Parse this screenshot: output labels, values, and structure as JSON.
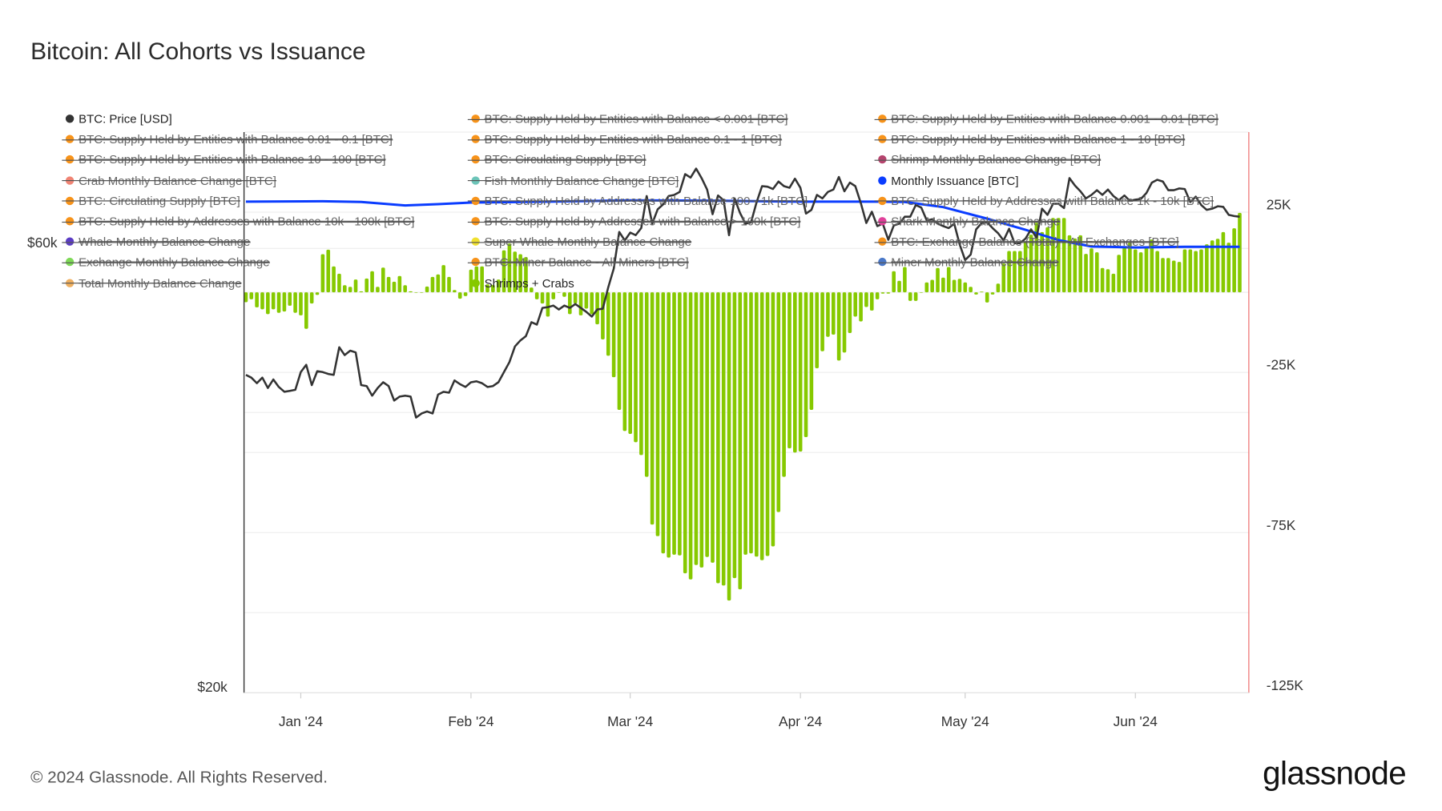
{
  "title": "Bitcoin: All Cohorts vs Issuance",
  "footer": "© 2024 Glassnode. All Rights Reserved.",
  "logo_text": "glassnode",
  "colors": {
    "price": "#333333",
    "issuance": "#0a3cff",
    "bars": "#86c900",
    "right_edge": "#f08080",
    "grid": "#eeeeee"
  },
  "legend": [
    {
      "label": "BTC: Price [USD]",
      "color": "#333333",
      "active": true
    },
    {
      "label": "BTC: Supply Held by Entities with Balance < 0.001 [BTC]",
      "color": "#f7931a",
      "active": false
    },
    {
      "label": "BTC: Supply Held by Entities with Balance 0.001 - 0.01 [BTC]",
      "color": "#f7931a",
      "active": false
    },
    {
      "label": "BTC: Supply Held by Entities with Balance 0.01 - 0.1 [BTC]",
      "color": "#f7931a",
      "active": false
    },
    {
      "label": "BTC: Supply Held by Entities with Balance 0.1 - 1 [BTC]",
      "color": "#f7931a",
      "active": false
    },
    {
      "label": "BTC: Supply Held by Entities with Balance 1 - 10 [BTC]",
      "color": "#f7931a",
      "active": false
    },
    {
      "label": "BTC: Supply Held by Entities with Balance 10 - 100 [BTC]",
      "color": "#f7931a",
      "active": false
    },
    {
      "label": "BTC: Circulating Supply [BTC]",
      "color": "#f7931a",
      "active": false
    },
    {
      "label": "Shrimp Monthly Balance Change [BTC]",
      "color": "#b5446e",
      "active": false
    },
    {
      "label": "Crab Monthly Balance Change [BTC]",
      "color": "#f08474",
      "active": false
    },
    {
      "label": "Fish Monthly Balance Change [BTC]",
      "color": "#6cc4b8",
      "active": false
    },
    {
      "label": "Monthly Issuance [BTC]",
      "color": "#0a3cff",
      "active": true
    },
    {
      "label": "BTC: Circulating Supply [BTC]",
      "color": "#f7931a",
      "active": false
    },
    {
      "label": "BTC: Supply Held by Addresses with Balance 100 - 1k [BTC]",
      "color": "#f7931a",
      "active": false
    },
    {
      "label": "BTC: Supply Held by Addresses with Balance 1k - 10k [BTC]",
      "color": "#f7931a",
      "active": false
    },
    {
      "label": "BTC: Supply Held by Addresses with Balance 10k - 100k [BTC]",
      "color": "#f7931a",
      "active": false
    },
    {
      "label": "BTC: Supply Held by Addresses with Balance > 100k [BTC]",
      "color": "#f7931a",
      "active": false
    },
    {
      "label": "Shark Monthly Balance Change",
      "color": "#e0409a",
      "active": false
    },
    {
      "label": "Whale Monthly Balance Change",
      "color": "#5b3cc4",
      "active": false
    },
    {
      "label": "Super Whale Monthly Balance Change",
      "color": "#f0e030",
      "active": false
    },
    {
      "label": "BTC: Exchange Balance (Total) - All Exchanges [BTC]",
      "color": "#f7931a",
      "active": false
    },
    {
      "label": "Exchange Monthly Balance Change",
      "color": "#7ed957",
      "active": false
    },
    {
      "label": "BTC: Miner Balance - All Miners [BTC]",
      "color": "#f7931a",
      "active": false
    },
    {
      "label": "Miner Monthly Balance Change",
      "color": "#4a78c8",
      "active": false
    },
    {
      "label": "Total Monthly Balance Change",
      "color": "#f0b060",
      "active": false
    },
    {
      "label": "Shrimps + Crabs",
      "color": "#86c900",
      "active": true
    }
  ],
  "chart_data": {
    "type": "bar+line",
    "title": "Bitcoin: All Cohorts vs Issuance",
    "x_tick_labels": [
      "Jan '24",
      "Feb '24",
      "Mar '24",
      "Apr '24",
      "May '24",
      "Jun '24"
    ],
    "x_tick_dates": [
      "2024-01-01",
      "2024-02-01",
      "2024-03-01",
      "2024-04-01",
      "2024-05-01",
      "2024-06-01"
    ],
    "left_axis": {
      "scale": "log",
      "range": [
        20000,
        80000
      ],
      "tick_labels": [
        "$60k",
        "$20k"
      ],
      "tick_values": [
        60000,
        20000
      ]
    },
    "right_axis": {
      "scale": "linear",
      "range": [
        -125000,
        50000
      ],
      "tick_labels": [
        "25K",
        "-25K",
        "-75K",
        "-125K"
      ],
      "tick_values": [
        25000,
        -25000,
        -75000,
        -125000
      ]
    },
    "grid": true,
    "bar_series": {
      "name": "Shrimps + Crabs",
      "start_date": "2023-12-22",
      "unit": "thousand BTC",
      "values": [
        -3.1,
        -2.2,
        -4.7,
        -5.3,
        -6.8,
        -5.3,
        -6.4,
        -6.0,
        -4.2,
        -6.4,
        -7.2,
        -11.4,
        -3.5,
        -0.8,
        11.9,
        13.3,
        8.1,
        5.8,
        2.2,
        1.7,
        4.0,
        0.3,
        4.3,
        6.6,
        1.7,
        7.7,
        4.8,
        3.3,
        5.1,
        2.2,
        0.3,
        0,
        0,
        1.8,
        4.8,
        5.6,
        8.5,
        4.8,
        0.7,
        -2.0,
        -1.2,
        7.1,
        8.1,
        8.1,
        2.5,
        2.3,
        4.0,
        13.1,
        15.2,
        12.7,
        11.9,
        11.0,
        1.5,
        -2.2,
        -3.5,
        -7.6,
        -2.2,
        0,
        -1.4,
        -6.8,
        -3.5,
        -7.2,
        -5.1,
        -6.8,
        -10.0,
        -14.7,
        -19.8,
        -26.5,
        -36.7,
        -43.3,
        -44.2,
        -46.8,
        -50.8,
        -57.6,
        -72.5,
        -76.1,
        -81.5,
        -82.8,
        -81.9,
        -82.1,
        -87.7,
        -89.6,
        -85.1,
        -85.9,
        -82.6,
        -84.4,
        -90.8,
        -91.5,
        -96.2,
        -89.2,
        -92.7,
        -81.9,
        -81.5,
        -82.5,
        -83.6,
        -82.3,
        -79.3,
        -68.6,
        -57.6,
        -48.7,
        -50.0,
        -49.7,
        -45.2,
        -36.7,
        -23.7,
        -18.4,
        -13.9,
        -13.2,
        -21.3,
        -18.8,
        -12.7,
        -7.6,
        -9.1,
        -4.6,
        -5.7,
        -2.2,
        -0.4,
        -0.4,
        6.6,
        3.6,
        7.9,
        -2.7,
        -2.7,
        0,
        3.1,
        3.9,
        7.6,
        4.6,
        7.9,
        3.9,
        4.2,
        3.1,
        1.7,
        -0.7,
        0.2,
        -3.2,
        -0.7,
        2.7,
        9.0,
        12.9,
        12.9,
        12.9,
        15.9,
        18.0,
        21.7,
        18.8,
        20.3,
        23.2,
        23.2,
        23.2,
        17.8,
        16.8,
        17.8,
        12.0,
        13.7,
        12.5,
        7.6,
        7.2,
        5.8,
        11.7,
        14.2,
        15.5,
        13.4,
        12.5,
        14.2,
        16.5,
        12.9,
        10.7,
        10.7,
        9.9,
        9.5,
        13.4,
        13.4,
        12.9,
        13.4,
        15.0,
        16.2,
        16.7,
        18.8,
        15.5,
        20.0,
        24.8
      ]
    },
    "issuance_series": {
      "name": "Monthly Issuance [BTC]",
      "unit": "thousand BTC",
      "points": [
        [
          "2023-12-22",
          28.3
        ],
        [
          "2024-01-05",
          28.4
        ],
        [
          "2024-01-12",
          28.2
        ],
        [
          "2024-01-20",
          27.1
        ],
        [
          "2024-01-26",
          27.5
        ],
        [
          "2024-02-01",
          28.0
        ],
        [
          "2024-02-15",
          28.3
        ],
        [
          "2024-03-01",
          28.7
        ],
        [
          "2024-03-15",
          28.6
        ],
        [
          "2024-04-01",
          28.3
        ],
        [
          "2024-04-15",
          28.3
        ],
        [
          "2024-04-20",
          28.2
        ],
        [
          "2024-04-27",
          26.6
        ],
        [
          "2024-05-05",
          23.0
        ],
        [
          "2024-05-12",
          19.5
        ],
        [
          "2024-05-18",
          16.3
        ],
        [
          "2024-05-24",
          14.3
        ],
        [
          "2024-06-01",
          14.0
        ],
        [
          "2024-06-10",
          14.2
        ],
        [
          "2024-06-20",
          14.2
        ]
      ]
    },
    "price_series": {
      "name": "BTC: Price [USD]",
      "points": [
        [
          "2023-12-22",
          43900
        ],
        [
          "2023-12-23",
          43600
        ],
        [
          "2023-12-24",
          43000
        ],
        [
          "2023-12-25",
          43600
        ],
        [
          "2023-12-26",
          42500
        ],
        [
          "2023-12-27",
          43400
        ],
        [
          "2023-12-28",
          42600
        ],
        [
          "2023-12-29",
          42100
        ],
        [
          "2023-12-30",
          42200
        ],
        [
          "2023-12-31",
          42300
        ],
        [
          "2024-01-01",
          44200
        ],
        [
          "2024-01-02",
          45000
        ],
        [
          "2024-01-03",
          42800
        ],
        [
          "2024-01-04",
          44300
        ],
        [
          "2024-01-05",
          44200
        ],
        [
          "2024-01-06",
          44000
        ],
        [
          "2024-01-07",
          43900
        ],
        [
          "2024-01-08",
          47000
        ],
        [
          "2024-01-09",
          46100
        ],
        [
          "2024-01-10",
          46600
        ],
        [
          "2024-01-11",
          46400
        ],
        [
          "2024-01-12",
          42800
        ],
        [
          "2024-01-13",
          42700
        ],
        [
          "2024-01-14",
          41700
        ],
        [
          "2024-01-15",
          42500
        ],
        [
          "2024-01-16",
          43100
        ],
        [
          "2024-01-17",
          42700
        ],
        [
          "2024-01-18",
          41200
        ],
        [
          "2024-01-19",
          41600
        ],
        [
          "2024-01-20",
          41700
        ],
        [
          "2024-01-21",
          41600
        ],
        [
          "2024-01-22",
          39500
        ],
        [
          "2024-01-23",
          39900
        ],
        [
          "2024-01-24",
          40100
        ],
        [
          "2024-01-25",
          39900
        ],
        [
          "2024-01-26",
          41800
        ],
        [
          "2024-01-27",
          42100
        ],
        [
          "2024-01-28",
          42000
        ],
        [
          "2024-01-29",
          43300
        ],
        [
          "2024-01-30",
          42900
        ],
        [
          "2024-01-31",
          42600
        ],
        [
          "2024-02-01",
          43100
        ],
        [
          "2024-02-02",
          43200
        ],
        [
          "2024-02-03",
          43000
        ],
        [
          "2024-02-04",
          42600
        ],
        [
          "2024-02-05",
          42700
        ],
        [
          "2024-02-06",
          43100
        ],
        [
          "2024-02-07",
          44200
        ],
        [
          "2024-02-08",
          45300
        ],
        [
          "2024-02-09",
          47100
        ],
        [
          "2024-02-10",
          47800
        ],
        [
          "2024-02-11",
          48300
        ],
        [
          "2024-02-12",
          50000
        ],
        [
          "2024-02-13",
          49700
        ],
        [
          "2024-02-14",
          51800
        ],
        [
          "2024-02-15",
          51900
        ],
        [
          "2024-02-16",
          52100
        ],
        [
          "2024-02-17",
          51600
        ],
        [
          "2024-02-18",
          52100
        ],
        [
          "2024-02-19",
          51800
        ],
        [
          "2024-02-20",
          52300
        ],
        [
          "2024-02-21",
          51800
        ],
        [
          "2024-02-22",
          51300
        ],
        [
          "2024-02-23",
          50700
        ],
        [
          "2024-02-24",
          51600
        ],
        [
          "2024-02-25",
          51700
        ],
        [
          "2024-02-26",
          54500
        ],
        [
          "2024-02-27",
          57100
        ],
        [
          "2024-02-28",
          62500
        ],
        [
          "2024-02-29",
          61200
        ],
        [
          "2024-03-01",
          62400
        ],
        [
          "2024-03-02",
          62000
        ],
        [
          "2024-03-03",
          63100
        ],
        [
          "2024-03-04",
          68300
        ],
        [
          "2024-03-05",
          63800
        ],
        [
          "2024-03-06",
          66100
        ],
        [
          "2024-03-07",
          66900
        ],
        [
          "2024-03-08",
          68300
        ],
        [
          "2024-03-09",
          68500
        ],
        [
          "2024-03-10",
          69000
        ],
        [
          "2024-03-11",
          72100
        ],
        [
          "2024-03-12",
          71500
        ],
        [
          "2024-03-13",
          73100
        ],
        [
          "2024-03-14",
          71400
        ],
        [
          "2024-03-15",
          69400
        ],
        [
          "2024-03-16",
          65300
        ],
        [
          "2024-03-17",
          68400
        ],
        [
          "2024-03-18",
          67600
        ],
        [
          "2024-03-19",
          62000
        ],
        [
          "2024-03-20",
          67900
        ],
        [
          "2024-03-21",
          65500
        ],
        [
          "2024-03-22",
          63800
        ],
        [
          "2024-03-23",
          64000
        ],
        [
          "2024-03-24",
          67200
        ],
        [
          "2024-03-25",
          70000
        ],
        [
          "2024-03-26",
          69900
        ],
        [
          "2024-03-27",
          69500
        ],
        [
          "2024-03-28",
          70800
        ],
        [
          "2024-03-29",
          70000
        ],
        [
          "2024-03-30",
          69700
        ],
        [
          "2024-03-31",
          71300
        ],
        [
          "2024-04-01",
          69700
        ],
        [
          "2024-04-02",
          65400
        ],
        [
          "2024-04-03",
          66000
        ],
        [
          "2024-04-04",
          68500
        ],
        [
          "2024-04-05",
          67900
        ],
        [
          "2024-04-06",
          69000
        ],
        [
          "2024-04-07",
          69400
        ],
        [
          "2024-04-08",
          71600
        ],
        [
          "2024-04-09",
          69100
        ],
        [
          "2024-04-10",
          70600
        ],
        [
          "2024-04-11",
          70000
        ],
        [
          "2024-04-12",
          67100
        ],
        [
          "2024-04-13",
          63900
        ],
        [
          "2024-04-14",
          65700
        ],
        [
          "2024-04-15",
          63400
        ],
        [
          "2024-04-16",
          63800
        ],
        [
          "2024-04-17",
          61300
        ],
        [
          "2024-04-18",
          63500
        ],
        [
          "2024-04-19",
          63800
        ],
        [
          "2024-04-20",
          64900
        ],
        [
          "2024-04-21",
          64900
        ],
        [
          "2024-04-22",
          66800
        ],
        [
          "2024-04-23",
          66400
        ],
        [
          "2024-04-24",
          64300
        ],
        [
          "2024-04-25",
          64500
        ],
        [
          "2024-04-26",
          63800
        ],
        [
          "2024-04-27",
          63400
        ],
        [
          "2024-04-28",
          63100
        ],
        [
          "2024-04-29",
          63800
        ],
        [
          "2024-04-30",
          60600
        ],
        [
          "2024-05-01",
          58300
        ],
        [
          "2024-05-02",
          59100
        ],
        [
          "2024-05-03",
          62900
        ],
        [
          "2024-05-04",
          63900
        ],
        [
          "2024-05-05",
          64000
        ],
        [
          "2024-05-06",
          63100
        ],
        [
          "2024-05-07",
          62300
        ],
        [
          "2024-05-08",
          61200
        ],
        [
          "2024-05-09",
          63000
        ],
        [
          "2024-05-10",
          60800
        ],
        [
          "2024-05-11",
          60800
        ],
        [
          "2024-05-12",
          61500
        ],
        [
          "2024-05-13",
          62900
        ],
        [
          "2024-05-14",
          61600
        ],
        [
          "2024-05-15",
          66200
        ],
        [
          "2024-05-16",
          65200
        ],
        [
          "2024-05-17",
          67000
        ],
        [
          "2024-05-18",
          67000
        ],
        [
          "2024-05-19",
          66300
        ],
        [
          "2024-05-20",
          71400
        ],
        [
          "2024-05-21",
          70100
        ],
        [
          "2024-05-22",
          69100
        ],
        [
          "2024-05-23",
          67900
        ],
        [
          "2024-05-24",
          68500
        ],
        [
          "2024-05-25",
          69300
        ],
        [
          "2024-05-26",
          68500
        ],
        [
          "2024-05-27",
          69400
        ],
        [
          "2024-05-28",
          68300
        ],
        [
          "2024-05-29",
          67600
        ],
        [
          "2024-05-30",
          68400
        ],
        [
          "2024-05-31",
          67500
        ],
        [
          "2024-06-01",
          67700
        ],
        [
          "2024-06-02",
          67800
        ],
        [
          "2024-06-03",
          68800
        ],
        [
          "2024-06-04",
          70600
        ],
        [
          "2024-06-05",
          71100
        ],
        [
          "2024-06-06",
          70800
        ],
        [
          "2024-06-07",
          69300
        ],
        [
          "2024-06-08",
          69300
        ],
        [
          "2024-06-09",
          69600
        ],
        [
          "2024-06-10",
          69500
        ],
        [
          "2024-06-11",
          67300
        ],
        [
          "2024-06-12",
          68200
        ],
        [
          "2024-06-13",
          66800
        ],
        [
          "2024-06-14",
          66000
        ],
        [
          "2024-06-15",
          66200
        ],
        [
          "2024-06-16",
          66600
        ],
        [
          "2024-06-17",
          66500
        ],
        [
          "2024-06-18",
          65200
        ],
        [
          "2024-06-19",
          65000
        ],
        [
          "2024-06-20",
          64900
        ]
      ]
    }
  }
}
